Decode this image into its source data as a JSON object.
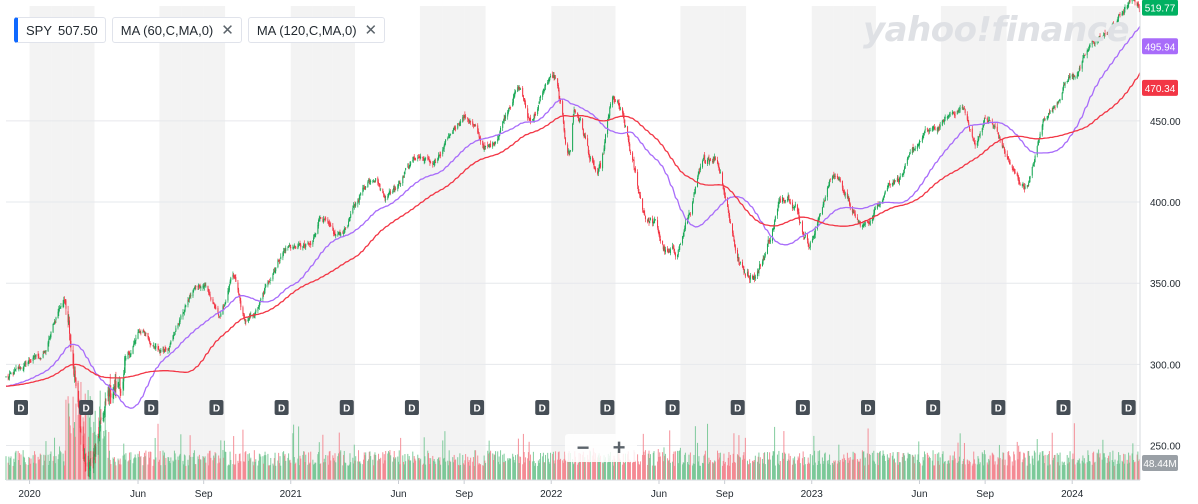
{
  "legend": {
    "symbol": "SPY",
    "symbol_value": "507.50",
    "ma1_label": "MA (60,C,MA,0)",
    "ma2_label": "MA (120,C,MA,0)",
    "close_icon": "close-icon",
    "accent_color": "#0f69ff"
  },
  "watermark": "yahoo!finance",
  "zoom": {
    "minus": "−",
    "plus": "+"
  },
  "chart_data": {
    "type": "candlestick",
    "x_axis_labels": [
      "2020",
      "Jun",
      "Sep",
      "2021",
      "Jun",
      "Sep",
      "2022",
      "Jun",
      "Sep",
      "2023",
      "Jun",
      "Sep",
      "2024"
    ],
    "y_axis_ticks": [
      250,
      300,
      350,
      400,
      450
    ],
    "ylim": [
      230,
      522
    ],
    "price_badges": [
      {
        "label": "519.77",
        "value": 519.77,
        "color": "#00b061",
        "series": "SPY"
      },
      {
        "label": "495.94",
        "value": 495.94,
        "color": "#a86cfa",
        "series": "MA (60,C,MA,0)"
      },
      {
        "label": "470.34",
        "value": 470.34,
        "color": "#f23645",
        "series": "MA (120,C,MA,0)"
      }
    ],
    "volume_badge": "48.44M",
    "dividend_marker": "D",
    "dividend_count": 18,
    "up_color": "#1aa856",
    "down_color": "#f23645",
    "price_anchors": [
      [
        "2019-11-29",
        292
      ],
      [
        "2020-01-17",
        305
      ],
      [
        "2020-02-19",
        339
      ],
      [
        "2020-03-23",
        236
      ],
      [
        "2020-04-30",
        285
      ],
      [
        "2020-06-08",
        320
      ],
      [
        "2020-06-30",
        308
      ],
      [
        "2020-08-31",
        350
      ],
      [
        "2020-09-23",
        330
      ],
      [
        "2020-10-12",
        352
      ],
      [
        "2020-10-30",
        326
      ],
      [
        "2020-12-31",
        373
      ],
      [
        "2021-01-29",
        372
      ],
      [
        "2021-02-12",
        392
      ],
      [
        "2021-03-04",
        378
      ],
      [
        "2021-04-30",
        417
      ],
      [
        "2021-05-12",
        405
      ],
      [
        "2021-06-30",
        428
      ],
      [
        "2021-07-19",
        424
      ],
      [
        "2021-09-02",
        453
      ],
      [
        "2021-10-04",
        433
      ],
      [
        "2021-11-18",
        470
      ],
      [
        "2021-12-01",
        451
      ],
      [
        "2022-01-03",
        477
      ],
      [
        "2022-01-27",
        431
      ],
      [
        "2022-02-02",
        457
      ],
      [
        "2022-03-08",
        416
      ],
      [
        "2022-03-29",
        461
      ],
      [
        "2022-05-20",
        389
      ],
      [
        "2022-06-16",
        366
      ],
      [
        "2022-08-16",
        429
      ],
      [
        "2022-09-30",
        357
      ],
      [
        "2022-10-12",
        357
      ],
      [
        "2022-11-30",
        407
      ],
      [
        "2022-12-28",
        377
      ],
      [
        "2023-02-02",
        416
      ],
      [
        "2023-03-13",
        385
      ],
      [
        "2023-04-28",
        415
      ],
      [
        "2023-06-15",
        443
      ],
      [
        "2023-07-31",
        458
      ],
      [
        "2023-08-18",
        436
      ],
      [
        "2023-09-01",
        451
      ],
      [
        "2023-10-27",
        410
      ],
      [
        "2023-11-30",
        456
      ],
      [
        "2023-12-29",
        477
      ],
      [
        "2024-02-09",
        501
      ],
      [
        "2024-03-28",
        523
      ],
      [
        "2024-04-05",
        520
      ]
    ]
  }
}
